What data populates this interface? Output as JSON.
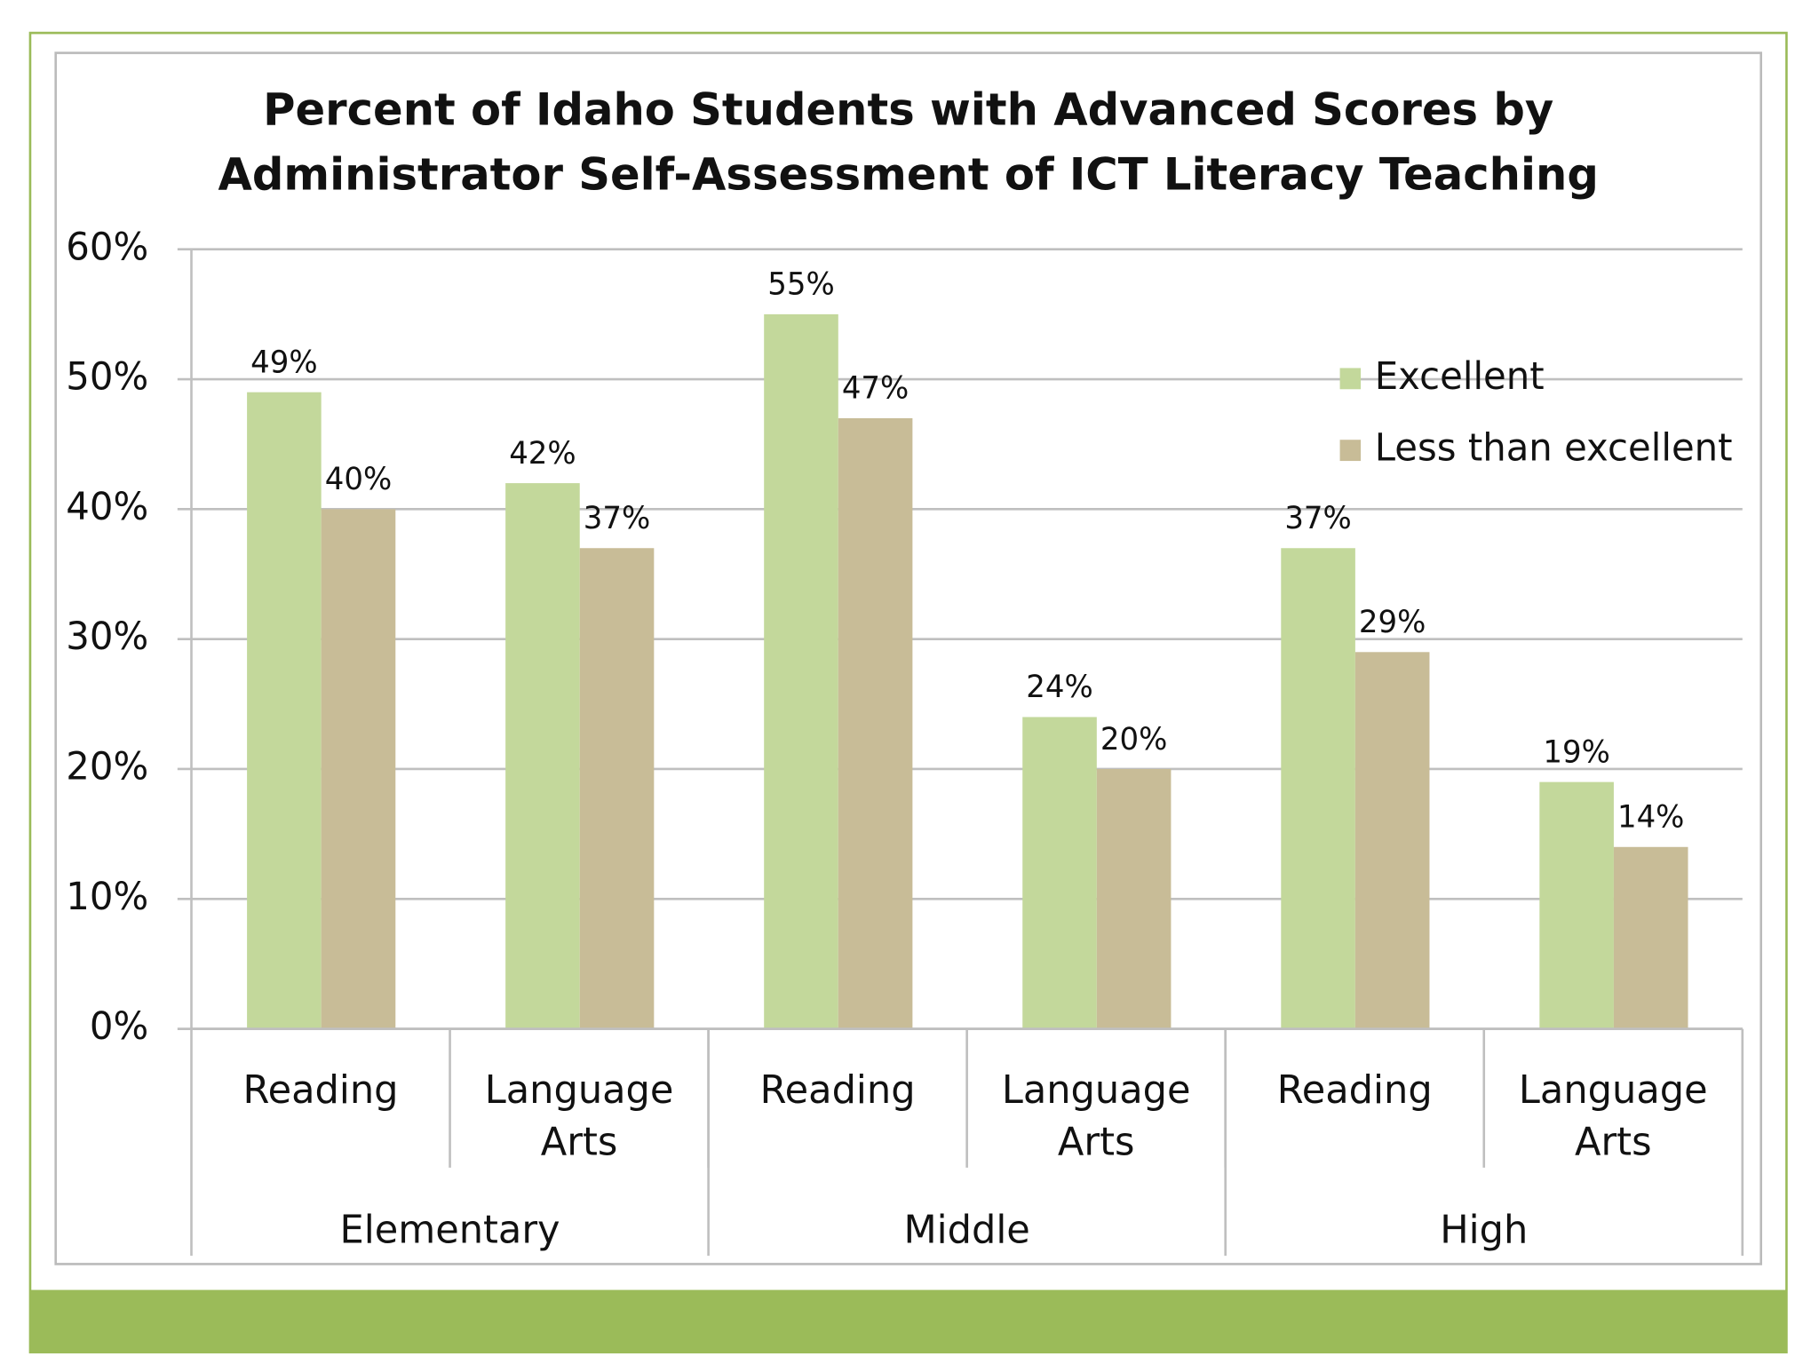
{
  "chart_data": {
    "type": "bar",
    "title": [
      "Percent of Idaho Students with Advanced Scores by",
      "Administrator Self-Assessment of ICT Literacy Teaching"
    ],
    "categories": [
      "Reading",
      "Language Arts",
      "Reading",
      "Language Arts",
      "Reading",
      "Language Arts"
    ],
    "groups": [
      "Elementary",
      "Middle",
      "High"
    ],
    "series": [
      {
        "name": "Excellent",
        "color": "#c3d89b",
        "values": [
          49,
          42,
          55,
          24,
          37,
          19
        ],
        "value_labels": [
          "49%",
          "42%",
          "55%",
          "24%",
          "37%",
          "19%"
        ]
      },
      {
        "name": "Less than excellent",
        "color": "#c8bc97",
        "values": [
          40,
          37,
          47,
          20,
          29,
          14
        ],
        "value_labels": [
          "40%",
          "37%",
          "47%",
          "20%",
          "29%",
          "14%"
        ]
      }
    ],
    "ylim": [
      0,
      60
    ],
    "yticks": [
      {
        "value": 0,
        "label": "0%"
      },
      {
        "value": 10,
        "label": "10%"
      },
      {
        "value": 20,
        "label": "20%"
      },
      {
        "value": 30,
        "label": "30%"
      },
      {
        "value": 40,
        "label": "40%"
      },
      {
        "value": 50,
        "label": "50%"
      },
      {
        "value": 60,
        "label": "60%"
      }
    ],
    "grid": true,
    "legend": "upper-right"
  }
}
